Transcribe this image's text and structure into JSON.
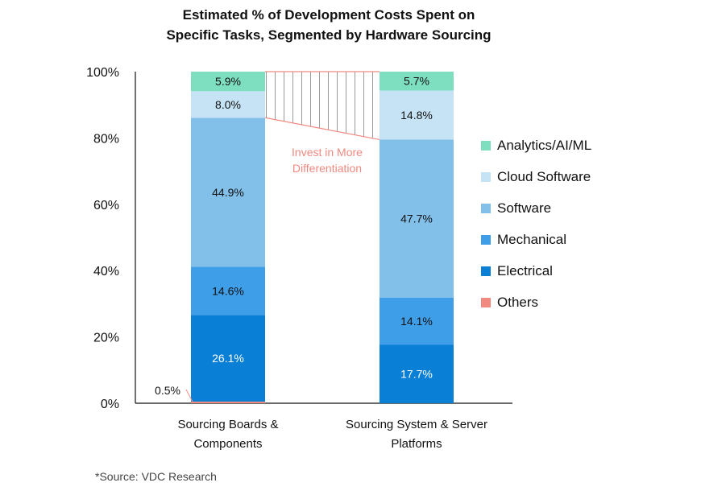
{
  "chart_data": {
    "type": "bar",
    "stacked": true,
    "title_lines": [
      "Estimated % of Development Costs Spent on",
      "Specific Tasks, Segmented by Hardware Sourcing"
    ],
    "categories": [
      [
        "Sourcing Boards &",
        "Components"
      ],
      [
        "Sourcing System & Server",
        "Platforms"
      ]
    ],
    "ylim": [
      0,
      100
    ],
    "yticks": [
      0,
      20,
      40,
      60,
      80,
      100
    ],
    "ytick_labels": [
      "0%",
      "20%",
      "40%",
      "60%",
      "80%",
      "100%"
    ],
    "series": [
      {
        "name": "Others",
        "color": "#f08a80",
        "values": [
          0.5,
          0
        ],
        "labels": [
          "0.5%",
          ""
        ]
      },
      {
        "name": "Electrical",
        "color": "#0a7fd6",
        "values": [
          26.1,
          17.7
        ],
        "labels": [
          "26.1%",
          "17.7%"
        ]
      },
      {
        "name": "Mechanical",
        "color": "#3f9ee8",
        "values": [
          14.6,
          14.1
        ],
        "labels": [
          "14.6%",
          "14.1%"
        ]
      },
      {
        "name": "Software",
        "color": "#82c0ea",
        "values": [
          44.9,
          47.7
        ],
        "labels": [
          "44.9%",
          "47.7%"
        ]
      },
      {
        "name": "Cloud Software",
        "color": "#c6e3f5",
        "values": [
          8.0,
          14.8
        ],
        "labels": [
          "8.0%",
          "14.8%"
        ]
      },
      {
        "name": "Analytics/AI/ML",
        "color": "#7ddfc0",
        "values": [
          5.9,
          5.7
        ],
        "labels": [
          "5.9%",
          "5.7%"
        ]
      }
    ],
    "legend_order": [
      "Analytics/AI/ML",
      "Cloud Software",
      "Software",
      "Mechanical",
      "Electrical",
      "Others"
    ],
    "legend_position": "right",
    "grid": false,
    "annotation_lines": [
      "Invest in More",
      "Differentiation"
    ],
    "annotation_color": "#f08a80"
  },
  "source": "*Source: VDC Research"
}
